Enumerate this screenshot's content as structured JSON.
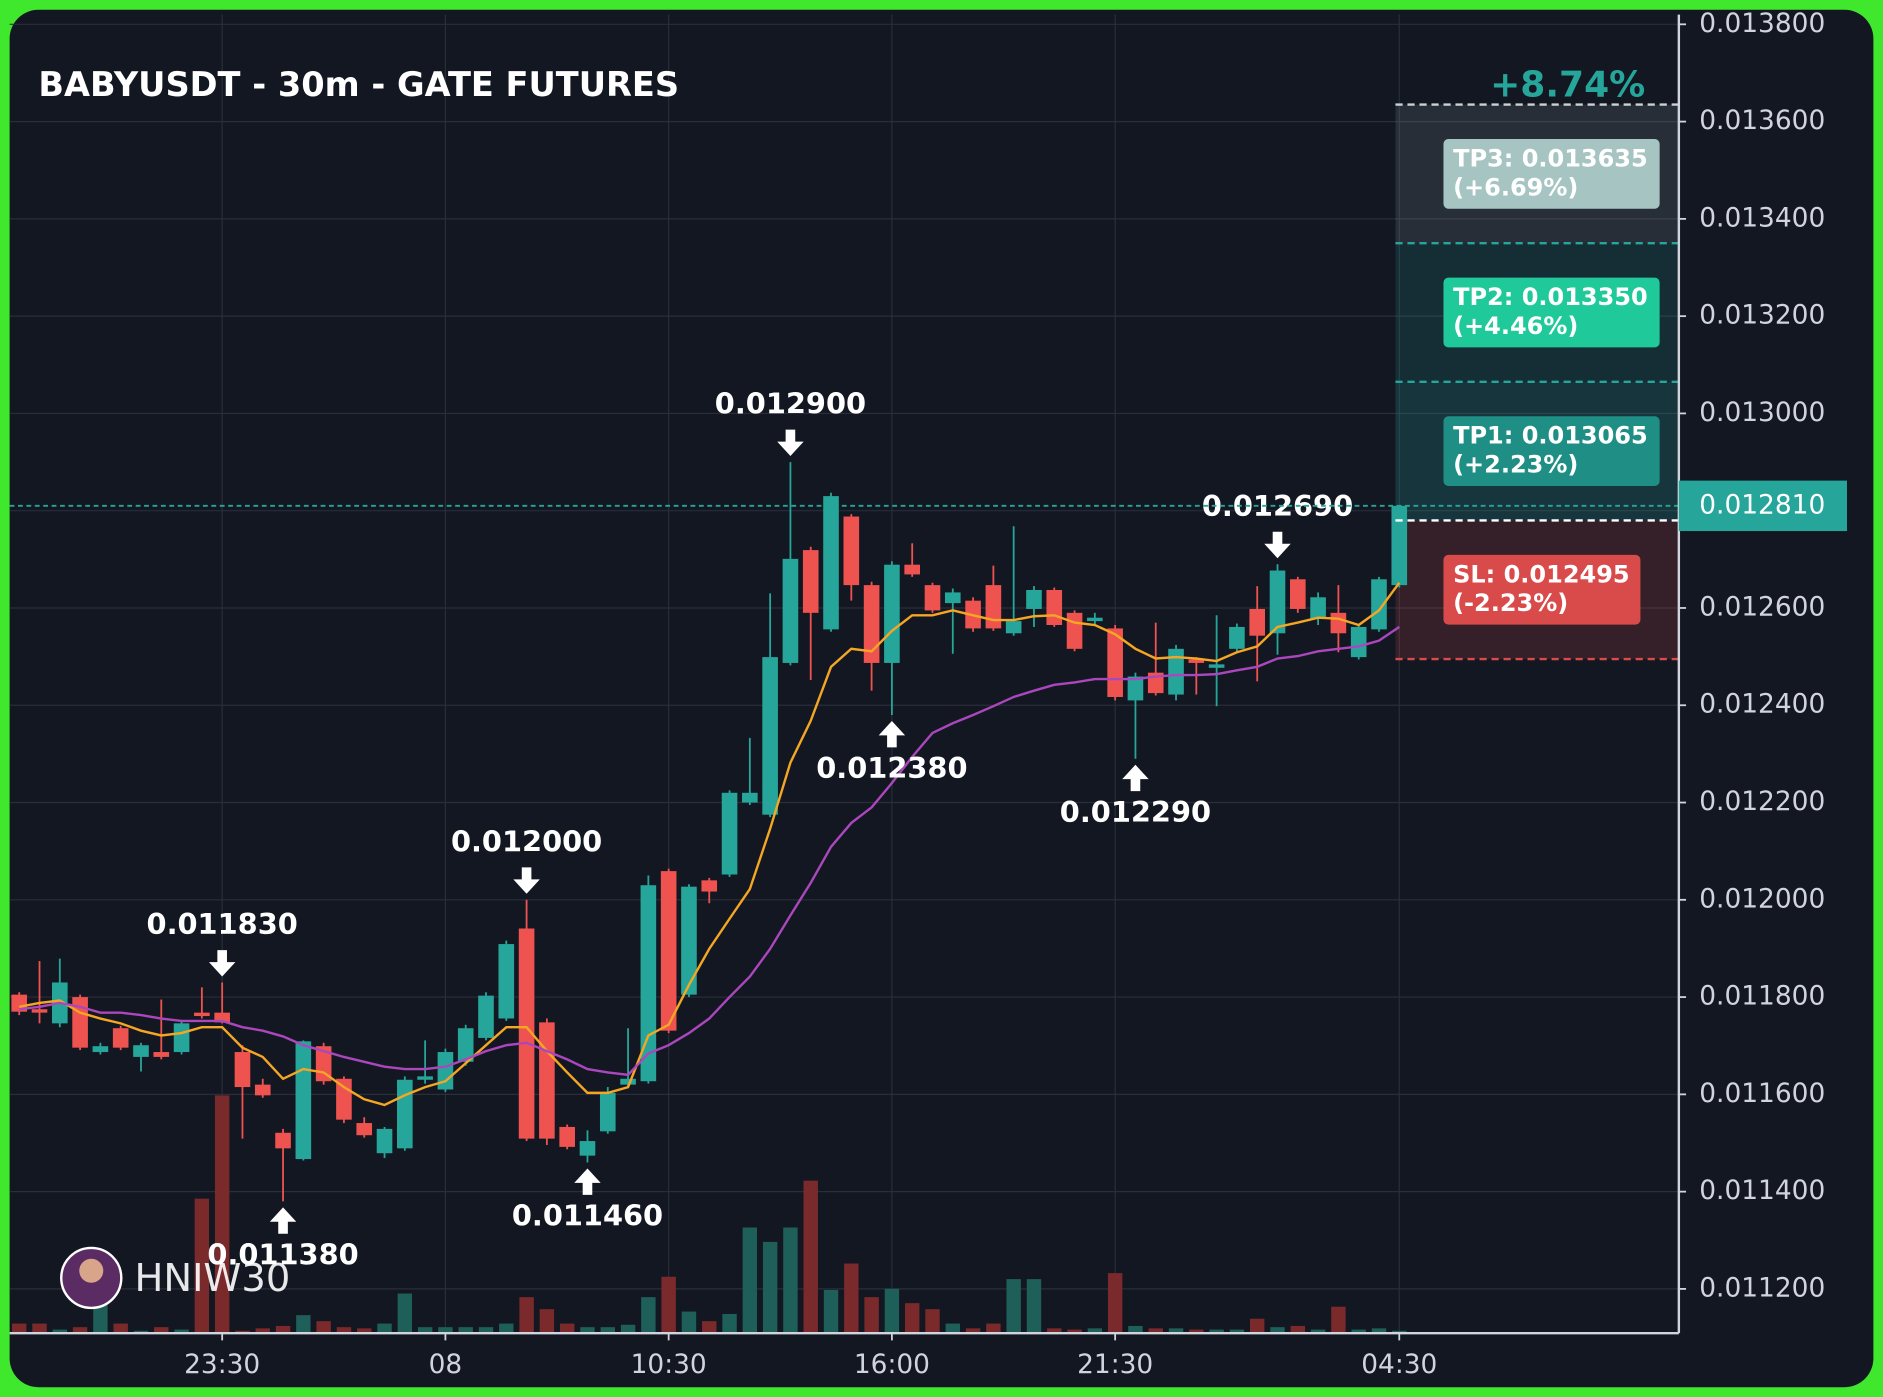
{
  "chart_data": {
    "type": "candlestick",
    "title": "BABYUSDT - 30m - GATE FUTURES",
    "total_change": "+8.74%",
    "watermark": "HNIW30",
    "categories": [
      null,
      null,
      null,
      null,
      null,
      null,
      null,
      null,
      null,
      null,
      "23:30",
      null,
      null,
      null,
      null,
      null,
      null,
      null,
      null,
      null,
      null,
      "08",
      null,
      null,
      null,
      null,
      null,
      null,
      null,
      null,
      null,
      null,
      "10:30",
      null,
      null,
      null,
      null,
      null,
      null,
      null,
      null,
      null,
      null,
      "16:00",
      null,
      null,
      null,
      null,
      null,
      null,
      null,
      null,
      null,
      null,
      "21:30",
      null,
      null,
      null,
      null,
      null,
      null,
      null,
      null,
      null,
      null,
      null,
      null,
      null,
      "04:30"
    ],
    "open": [
      0.011805,
      0.011775,
      0.011746,
      0.0118,
      0.011687,
      0.011736,
      0.011677,
      0.011687,
      0.011687,
      0.011768,
      0.011768,
      0.011687,
      0.01162,
      0.011521,
      0.011467,
      0.011699,
      0.011632,
      0.011541,
      0.011479,
      0.011489,
      0.01163,
      0.01161,
      0.011667,
      0.011716,
      0.011756,
      0.011941,
      0.011748,
      0.011533,
      0.011474,
      0.011524,
      0.01162,
      0.011627,
      0.012059,
      0.011805,
      0.01204,
      0.012052,
      0.0122,
      0.012175,
      0.012487,
      0.012719,
      0.012556,
      0.012788,
      0.012647,
      0.012487,
      0.012689,
      0.012647,
      0.01261,
      0.012615,
      0.012647,
      0.012548,
      0.012598,
      0.012637,
      0.01259,
      0.012573,
      0.012558,
      0.01241,
      0.012467,
      0.012422,
      0.012494,
      0.012477,
      0.012516,
      0.012598,
      0.012548,
      0.012659,
      0.012578,
      0.01259,
      0.012499,
      0.012556,
      0.012647
    ],
    "high": [
      0.01181,
      0.011874,
      0.011879,
      0.011805,
      0.011706,
      0.011741,
      0.011706,
      0.011795,
      0.011751,
      0.01182,
      0.01183,
      0.011701,
      0.011632,
      0.011529,
      0.011711,
      0.011706,
      0.011637,
      0.011553,
      0.011533,
      0.011637,
      0.011711,
      0.011694,
      0.011743,
      0.01181,
      0.011916,
      0.012,
      0.011756,
      0.011538,
      0.011526,
      0.011615,
      0.011736,
      0.01205,
      0.012064,
      0.012032,
      0.012045,
      0.012225,
      0.012333,
      0.01263,
      0.0129,
      0.012726,
      0.012837,
      0.012793,
      0.012654,
      0.012696,
      0.012733,
      0.012652,
      0.01264,
      0.012622,
      0.012687,
      0.012768,
      0.012645,
      0.012642,
      0.012595,
      0.01259,
      0.012565,
      0.012467,
      0.01257,
      0.012524,
      0.012499,
      0.012585,
      0.012568,
      0.012645,
      0.01269,
      0.012664,
      0.012632,
      0.012647,
      0.012565,
      0.012664,
      0.01281
    ],
    "low": [
      0.011763,
      0.011746,
      0.011738,
      0.011691,
      0.011682,
      0.011691,
      0.011647,
      0.011672,
      0.011682,
      0.011756,
      0.011746,
      0.011509,
      0.011593,
      0.01138,
      0.011464,
      0.01162,
      0.011541,
      0.011511,
      0.011469,
      0.011484,
      0.011622,
      0.011605,
      0.011659,
      0.011711,
      0.011751,
      0.011504,
      0.011496,
      0.011487,
      0.01146,
      0.011519,
      0.011615,
      0.011622,
      0.011726,
      0.0118,
      0.011993,
      0.012047,
      0.012195,
      0.01217,
      0.012482,
      0.012452,
      0.012551,
      0.012615,
      0.01243,
      0.01238,
      0.012664,
      0.01259,
      0.012506,
      0.012551,
      0.012553,
      0.012543,
      0.012561,
      0.012561,
      0.012511,
      0.012565,
      0.01241,
      0.01229,
      0.01242,
      0.01241,
      0.012422,
      0.012398,
      0.012509,
      0.012449,
      0.012504,
      0.01259,
      0.012565,
      0.012509,
      0.012494,
      0.012551,
      0.012642
    ],
    "close": [
      0.01177,
      0.011768,
      0.01183,
      0.011696,
      0.011699,
      0.011696,
      0.011701,
      0.011677,
      0.011746,
      0.011761,
      0.011748,
      0.011615,
      0.011598,
      0.011489,
      0.011709,
      0.011627,
      0.011548,
      0.011516,
      0.011529,
      0.01163,
      0.011637,
      0.011687,
      0.011736,
      0.011803,
      0.011909,
      0.011509,
      0.011509,
      0.011492,
      0.011504,
      0.011603,
      0.011632,
      0.01203,
      0.011731,
      0.012027,
      0.012017,
      0.01222,
      0.01222,
      0.012499,
      0.012701,
      0.01259,
      0.01283,
      0.012647,
      0.012487,
      0.012689,
      0.012669,
      0.012595,
      0.012632,
      0.012558,
      0.012558,
      0.012573,
      0.012637,
      0.012565,
      0.012516,
      0.01258,
      0.012417,
      0.012459,
      0.012425,
      0.012516,
      0.012487,
      0.012484,
      0.012561,
      0.012543,
      0.012677,
      0.012598,
      0.012622,
      0.012548,
      0.012561,
      0.012659,
      0.01281
    ],
    "volume": [
      8,
      8,
      3,
      5,
      25,
      8,
      2,
      5,
      3,
      112,
      198,
      2,
      4,
      6,
      15,
      10,
      5,
      4,
      8,
      33,
      5,
      5,
      5,
      5,
      8,
      30,
      20,
      8,
      5,
      5,
      7,
      30,
      47,
      18,
      10,
      16,
      88,
      76,
      88,
      127,
      36,
      58,
      30,
      37,
      25,
      20,
      8,
      4,
      8,
      45,
      45,
      4,
      3,
      4,
      50,
      6,
      4,
      4,
      3,
      3,
      3,
      12,
      5,
      6,
      3,
      22,
      3,
      4,
      2
    ],
    "moving_averages": [
      {
        "color": "#f5a623",
        "values": [
          0.01178,
          0.011788,
          0.011793,
          0.011768,
          0.011756,
          0.011746,
          0.011731,
          0.011721,
          0.011726,
          0.011738,
          0.011738,
          0.011696,
          0.011677,
          0.011632,
          0.011652,
          0.011645,
          0.011615,
          0.01159,
          0.011578,
          0.011598,
          0.011615,
          0.011627,
          0.011664,
          0.011701,
          0.011738,
          0.011738,
          0.011689,
          0.011645,
          0.011603,
          0.011603,
          0.011615,
          0.011721,
          0.011743,
          0.011825,
          0.011899,
          0.011961,
          0.012022,
          0.012146,
          0.012282,
          0.012368,
          0.012479,
          0.012516,
          0.012511,
          0.012553,
          0.012585,
          0.012585,
          0.012595,
          0.012585,
          0.012575,
          0.012575,
          0.012583,
          0.012585,
          0.01257,
          0.012565,
          0.012546,
          0.012516,
          0.012496,
          0.012499,
          0.012496,
          0.012491,
          0.012509,
          0.012521,
          0.012561,
          0.01257,
          0.01258,
          0.012578,
          0.012565,
          0.012595,
          0.012652
        ]
      },
      {
        "color": "#ab47bc",
        "values": [
          0.011775,
          0.01178,
          0.011788,
          0.01178,
          0.011768,
          0.011768,
          0.011763,
          0.011756,
          0.011751,
          0.011751,
          0.011751,
          0.011738,
          0.011731,
          0.011719,
          0.011701,
          0.011689,
          0.011677,
          0.011667,
          0.011657,
          0.011652,
          0.011652,
          0.011657,
          0.011672,
          0.011689,
          0.011701,
          0.011706,
          0.011689,
          0.011672,
          0.011652,
          0.011645,
          0.01164,
          0.011684,
          0.011701,
          0.011726,
          0.011756,
          0.0118,
          0.011842,
          0.011899,
          0.011968,
          0.012035,
          0.012109,
          0.012158,
          0.01219,
          0.01224,
          0.012294,
          0.012343,
          0.012363,
          0.01238,
          0.012398,
          0.012417,
          0.01243,
          0.012442,
          0.012447,
          0.012454,
          0.012454,
          0.012454,
          0.012459,
          0.012462,
          0.012462,
          0.012464,
          0.012472,
          0.012479,
          0.012496,
          0.012501,
          0.012511,
          0.012516,
          0.012521,
          0.012533,
          0.012561
        ]
      }
    ],
    "high_labels": [
      {
        "index": 10,
        "label": "0.011830"
      },
      {
        "index": 25,
        "label": "0.012000"
      },
      {
        "index": 38,
        "label": "0.012900"
      },
      {
        "index": 62,
        "label": "0.012690"
      }
    ],
    "low_labels": [
      {
        "index": 13,
        "label": "0.011380"
      },
      {
        "index": 28,
        "label": "0.011460"
      },
      {
        "index": 43,
        "label": "0.012380"
      },
      {
        "index": 55,
        "label": "0.012290"
      }
    ],
    "up_color": "#26a69a",
    "down_color": "#ef5350",
    "last_price": {
      "value": 0.01281,
      "label": "0.012810"
    },
    "entry": 0.01278,
    "targets": [
      {
        "label": "TP3: 0.013635",
        "change": "(+6.69%)",
        "value": 0.013635,
        "color": "#a6c5c2"
      },
      {
        "label": "TP2: 0.013350",
        "change": "(+4.46%)",
        "value": 0.01335,
        "color": "#1fc99a"
      },
      {
        "label": "TP1: 0.013065",
        "change": "(+2.23%)",
        "value": 0.013065,
        "color": "#1f8f86"
      }
    ],
    "stop": {
      "label": "SL: 0.012495",
      "change": "(-2.23%)",
      "value": 0.012495,
      "color": "#d94a4a"
    },
    "ylim": [
      0.011109,
      0.01382
    ],
    "yticks": [
      {
        "value": 0.0112,
        "label": "0.011200"
      },
      {
        "value": 0.0114,
        "label": "0.011400"
      },
      {
        "value": 0.0116,
        "label": "0.011600"
      },
      {
        "value": 0.0118,
        "label": "0.011800"
      },
      {
        "value": 0.012,
        "label": "0.012000"
      },
      {
        "value": 0.0122,
        "label": "0.012200"
      },
      {
        "value": 0.0124,
        "label": "0.012400"
      },
      {
        "value": 0.0126,
        "label": "0.012600"
      },
      {
        "value": 0.0128,
        "label": "0.012800"
      },
      {
        "value": 0.013,
        "label": "0.013000"
      },
      {
        "value": 0.0132,
        "label": "0.013200"
      },
      {
        "value": 0.0134,
        "label": "0.013400"
      },
      {
        "value": 0.0136,
        "label": "0.013600"
      },
      {
        "value": 0.0138,
        "label": "0.013800"
      }
    ],
    "grid": true
  }
}
